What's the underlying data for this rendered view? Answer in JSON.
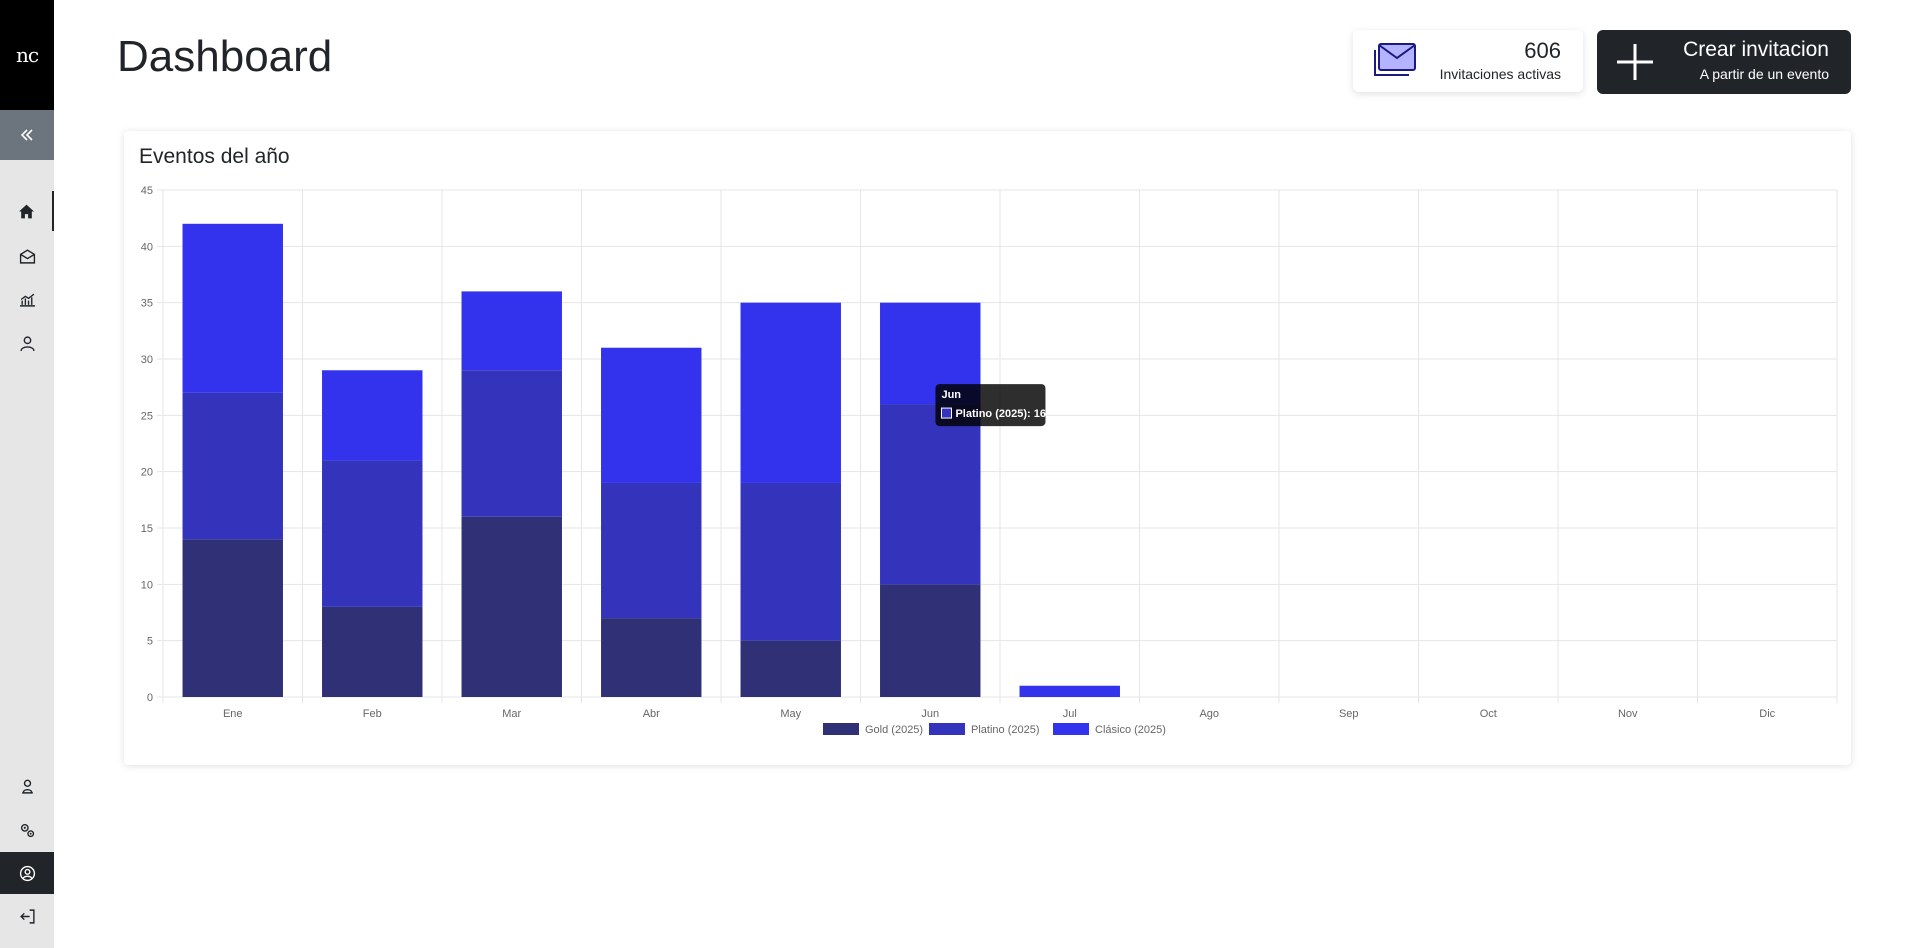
{
  "sidebar": {
    "logo": "nc",
    "items": [
      {
        "name": "home-icon"
      },
      {
        "name": "invitations-icon"
      },
      {
        "name": "stats-icon"
      },
      {
        "name": "user-icon"
      },
      {
        "name": "accounts-icon"
      },
      {
        "name": "settings-icon"
      },
      {
        "name": "profile-icon"
      },
      {
        "name": "logout-icon"
      }
    ]
  },
  "header": {
    "title": "Dashboard",
    "stat": {
      "value": "606",
      "label": "Invitaciones activas"
    },
    "create": {
      "label": "Crear invitacion",
      "sublabel": "A partir de un evento"
    }
  },
  "chart_data": {
    "type": "bar",
    "stacked": true,
    "title": "Eventos del año",
    "categories": [
      "Ene",
      "Feb",
      "Mar",
      "Abr",
      "May",
      "Jun",
      "Jul",
      "Ago",
      "Sep",
      "Oct",
      "Nov",
      "Dic"
    ],
    "ylim": [
      0,
      45
    ],
    "yticks": [
      0,
      5,
      10,
      15,
      20,
      25,
      30,
      35,
      40,
      45
    ],
    "series": [
      {
        "name": "Gold (2025)",
        "color": "#303077",
        "values": [
          14,
          8,
          16,
          7,
          5,
          10,
          0,
          0,
          0,
          0,
          0,
          0
        ]
      },
      {
        "name": "Platino (2025)",
        "color": "#3333bb",
        "values": [
          13,
          13,
          13,
          12,
          14,
          16,
          0,
          0,
          0,
          0,
          0,
          0
        ]
      },
      {
        "name": "Clásico (2025)",
        "color": "#3333ee",
        "values": [
          15,
          8,
          7,
          12,
          16,
          9,
          1,
          0,
          0,
          0,
          0,
          0
        ]
      }
    ],
    "legend": "bottom",
    "tooltip": {
      "title": "Jun",
      "text": "Platino (2025): 16"
    }
  }
}
